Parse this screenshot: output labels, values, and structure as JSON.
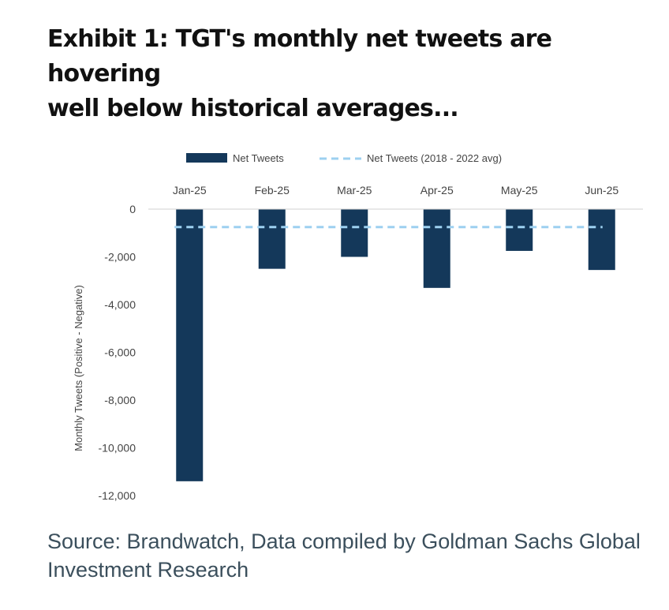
{
  "title": {
    "line1": "Exhibit 1: TGT's monthly net tweets are hovering",
    "line2": "well below historical averages..."
  },
  "source": {
    "line1": "Source: Brandwatch, Data compiled by Goldman Sachs Global",
    "line2": "Investment Research"
  },
  "chart_data": {
    "type": "bar",
    "categories": [
      "Jan-25",
      "Feb-25",
      "Mar-25",
      "Apr-25",
      "May-25",
      "Jun-25"
    ],
    "series": [
      {
        "name": "Net Tweets",
        "values": [
          -11400,
          -2500,
          -2000,
          -3300,
          -1750,
          -2550
        ],
        "color": "#14385a"
      },
      {
        "name": "Net Tweets (2018 - 2022 avg)",
        "values": [
          -750,
          -750,
          -750,
          -750,
          -750,
          -750
        ],
        "color": "#9dd0f0",
        "style": "dashed-line"
      }
    ],
    "ylabel": "Monthly Tweets (Positive - Negative)",
    "ylim": [
      -12000,
      0
    ],
    "yticks": [
      0,
      -2000,
      -4000,
      -6000,
      -8000,
      -10000,
      -12000
    ],
    "ytick_labels": [
      "0",
      "-2,000",
      "-4,000",
      "-6,000",
      "-8,000",
      "-10,000",
      "-12,000"
    ],
    "xaxis_position": "top",
    "legend_position": "top"
  }
}
